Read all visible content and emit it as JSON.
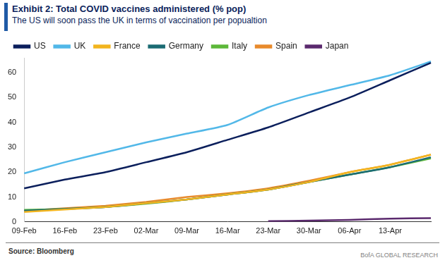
{
  "chart_data": {
    "type": "line",
    "title": "Exhibit 2: Total COVID vaccines administered (% pop)",
    "subtitle": "The US will soon pass the UK in terms of vaccination per popualtion",
    "source": "Source: Bloomberg",
    "credit": "BofA GLOBAL RESEARCH",
    "categories": [
      "09-Feb",
      "16-Feb",
      "23-Feb",
      "02-Mar",
      "09-Mar",
      "16-Mar",
      "23-Mar",
      "30-Mar",
      "06-Apr",
      "13-Apr",
      null
    ],
    "series": [
      {
        "name": "US",
        "color": "#0b1f5c",
        "values": [
          13.5,
          17,
          20,
          24,
          28,
          33,
          38,
          44,
          50,
          57,
          64
        ]
      },
      {
        "name": "UK",
        "color": "#52b8e8",
        "values": [
          19.5,
          24,
          28,
          32,
          35.5,
          39,
          46,
          51,
          55,
          59,
          64.5
        ]
      },
      {
        "name": "France",
        "color": "#f2b51f",
        "values": [
          4,
          5,
          6,
          7.5,
          9,
          11,
          13,
          16,
          20,
          23,
          27
        ]
      },
      {
        "name": "Germany",
        "color": "#1b6b73",
        "values": [
          4.5,
          5.2,
          6,
          7.5,
          9,
          11,
          13,
          16,
          19,
          22,
          26
        ]
      },
      {
        "name": "Italy",
        "color": "#5cb83a",
        "values": [
          4.8,
          5.2,
          6,
          7.3,
          9,
          11,
          13,
          16,
          19,
          22,
          25.5
        ]
      },
      {
        "name": "Spain",
        "color": "#e88a2c",
        "values": [
          4.5,
          5.5,
          6.5,
          8,
          10,
          11.5,
          13.5,
          16.5,
          20,
          23,
          27
        ]
      },
      {
        "name": "Japan",
        "color": "#5b2a6e",
        "values": [
          null,
          null,
          null,
          null,
          null,
          null,
          0.3,
          0.5,
          0.8,
          1.3,
          1.5
        ]
      }
    ],
    "ylim": [
      0,
      66
    ],
    "yticks": [
      0,
      10,
      20,
      30,
      40,
      50,
      60
    ],
    "grid": false,
    "legend": "top"
  }
}
